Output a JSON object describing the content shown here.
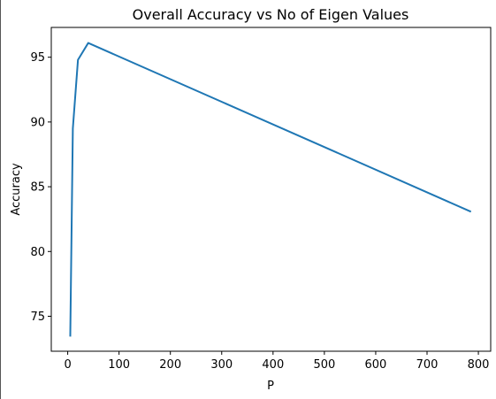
{
  "chart_data": {
    "type": "line",
    "title": "Overall Accuracy vs No of Eigen Values",
    "xlabel": "P",
    "ylabel": "Accuracy",
    "xlim": [
      -32,
      824
    ],
    "ylim": [
      72.3,
      97.3
    ],
    "xticks": [
      0,
      100,
      200,
      300,
      400,
      500,
      600,
      700,
      800
    ],
    "yticks": [
      75,
      80,
      85,
      90,
      95
    ],
    "grid": false,
    "series": [
      {
        "color": "#1f77b4",
        "points": [
          {
            "x": 5,
            "y": 73.5
          },
          {
            "x": 10,
            "y": 89.5
          },
          {
            "x": 20,
            "y": 94.8
          },
          {
            "x": 40,
            "y": 96.1
          },
          {
            "x": 784,
            "y": 83.1
          }
        ]
      }
    ]
  }
}
